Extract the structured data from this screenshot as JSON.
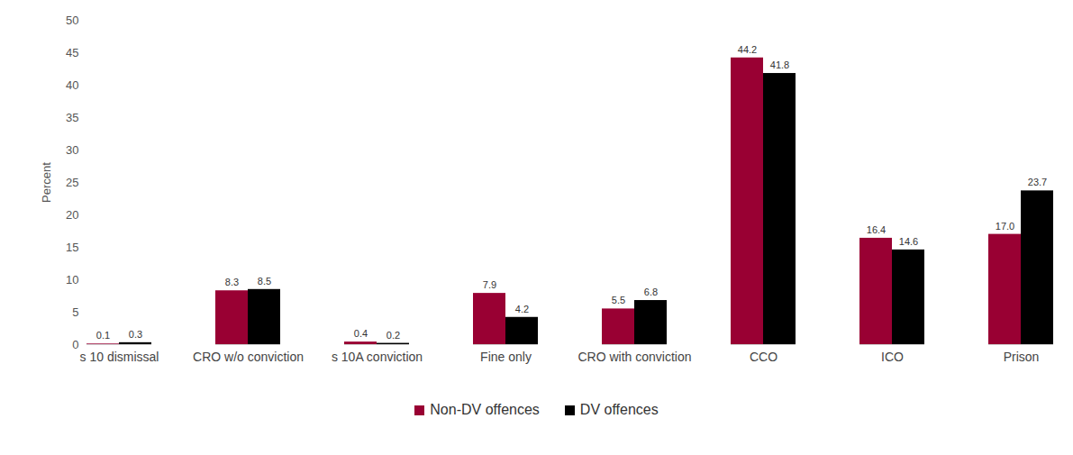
{
  "chart_data": {
    "type": "bar",
    "ylabel": "Percent",
    "categories": [
      "s 10 dismissal",
      "CRO w/o conviction",
      "s 10A conviction",
      "Fine only",
      "CRO with conviction",
      "CCO",
      "ICO",
      "Prison"
    ],
    "series": [
      {
        "name": "Non-DV offences",
        "color": "#990033",
        "values": [
          0.1,
          8.3,
          0.4,
          7.9,
          5.5,
          44.2,
          16.4,
          17.0
        ],
        "value_labels": [
          "0.1",
          "8.3",
          "0.4",
          "7.9",
          "5.5",
          "44.2",
          "16.4",
          "17.0"
        ]
      },
      {
        "name": "DV offences",
        "color": "#000000",
        "values": [
          0.3,
          8.5,
          0.2,
          4.2,
          6.8,
          41.8,
          14.6,
          23.7
        ]
      }
    ],
    "ylim": [
      0,
      50
    ],
    "yticks": [
      0,
      5,
      10,
      15,
      20,
      25,
      30,
      35,
      40,
      45,
      50
    ],
    "grid": false,
    "data_labels": true,
    "legend": "bottom"
  }
}
